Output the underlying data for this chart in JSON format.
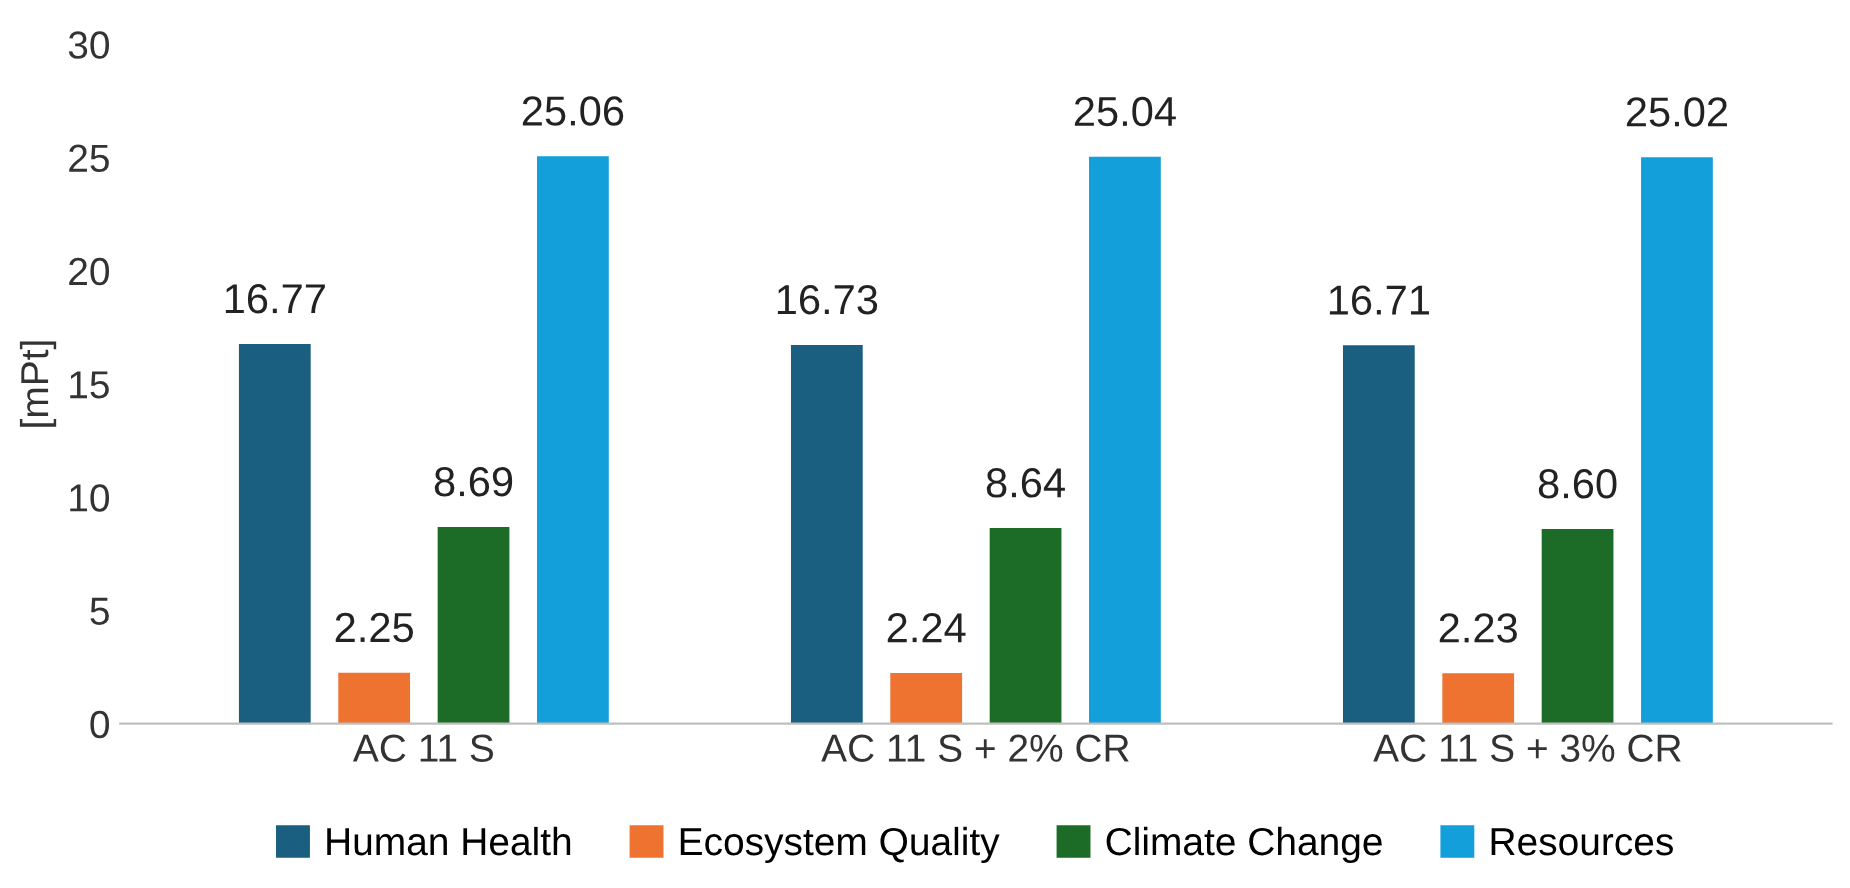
{
  "chart_data": {
    "type": "bar",
    "ylabel": "[mPt]",
    "categories": [
      "AC 11 S",
      "AC 11 S + 2% CR",
      "AC 11 S + 3% CR"
    ],
    "series": [
      {
        "name": "Human Health",
        "color": "#1a5e80",
        "values": [
          16.77,
          16.73,
          16.71
        ],
        "value_labels": [
          "16.77",
          "16.73",
          "16.71"
        ]
      },
      {
        "name": "Ecosystem Quality",
        "color": "#ee7230",
        "values": [
          2.25,
          2.24,
          2.23
        ],
        "value_labels": [
          "2.25",
          "2.24",
          "2.23"
        ]
      },
      {
        "name": "Climate Change",
        "color": "#1c6b26",
        "values": [
          8.69,
          8.64,
          8.6
        ],
        "value_labels": [
          "8.69",
          "8.64",
          "8.60"
        ]
      },
      {
        "name": "Resources",
        "color": "#129fda",
        "values": [
          25.06,
          25.04,
          25.02
        ],
        "value_labels": [
          "25.06",
          "25.04",
          "25.02"
        ]
      }
    ],
    "ylim": [
      0,
      30
    ],
    "yticks": [
      0,
      5,
      10,
      15,
      20,
      25,
      30
    ],
    "grid": false,
    "legend": "bottom"
  }
}
